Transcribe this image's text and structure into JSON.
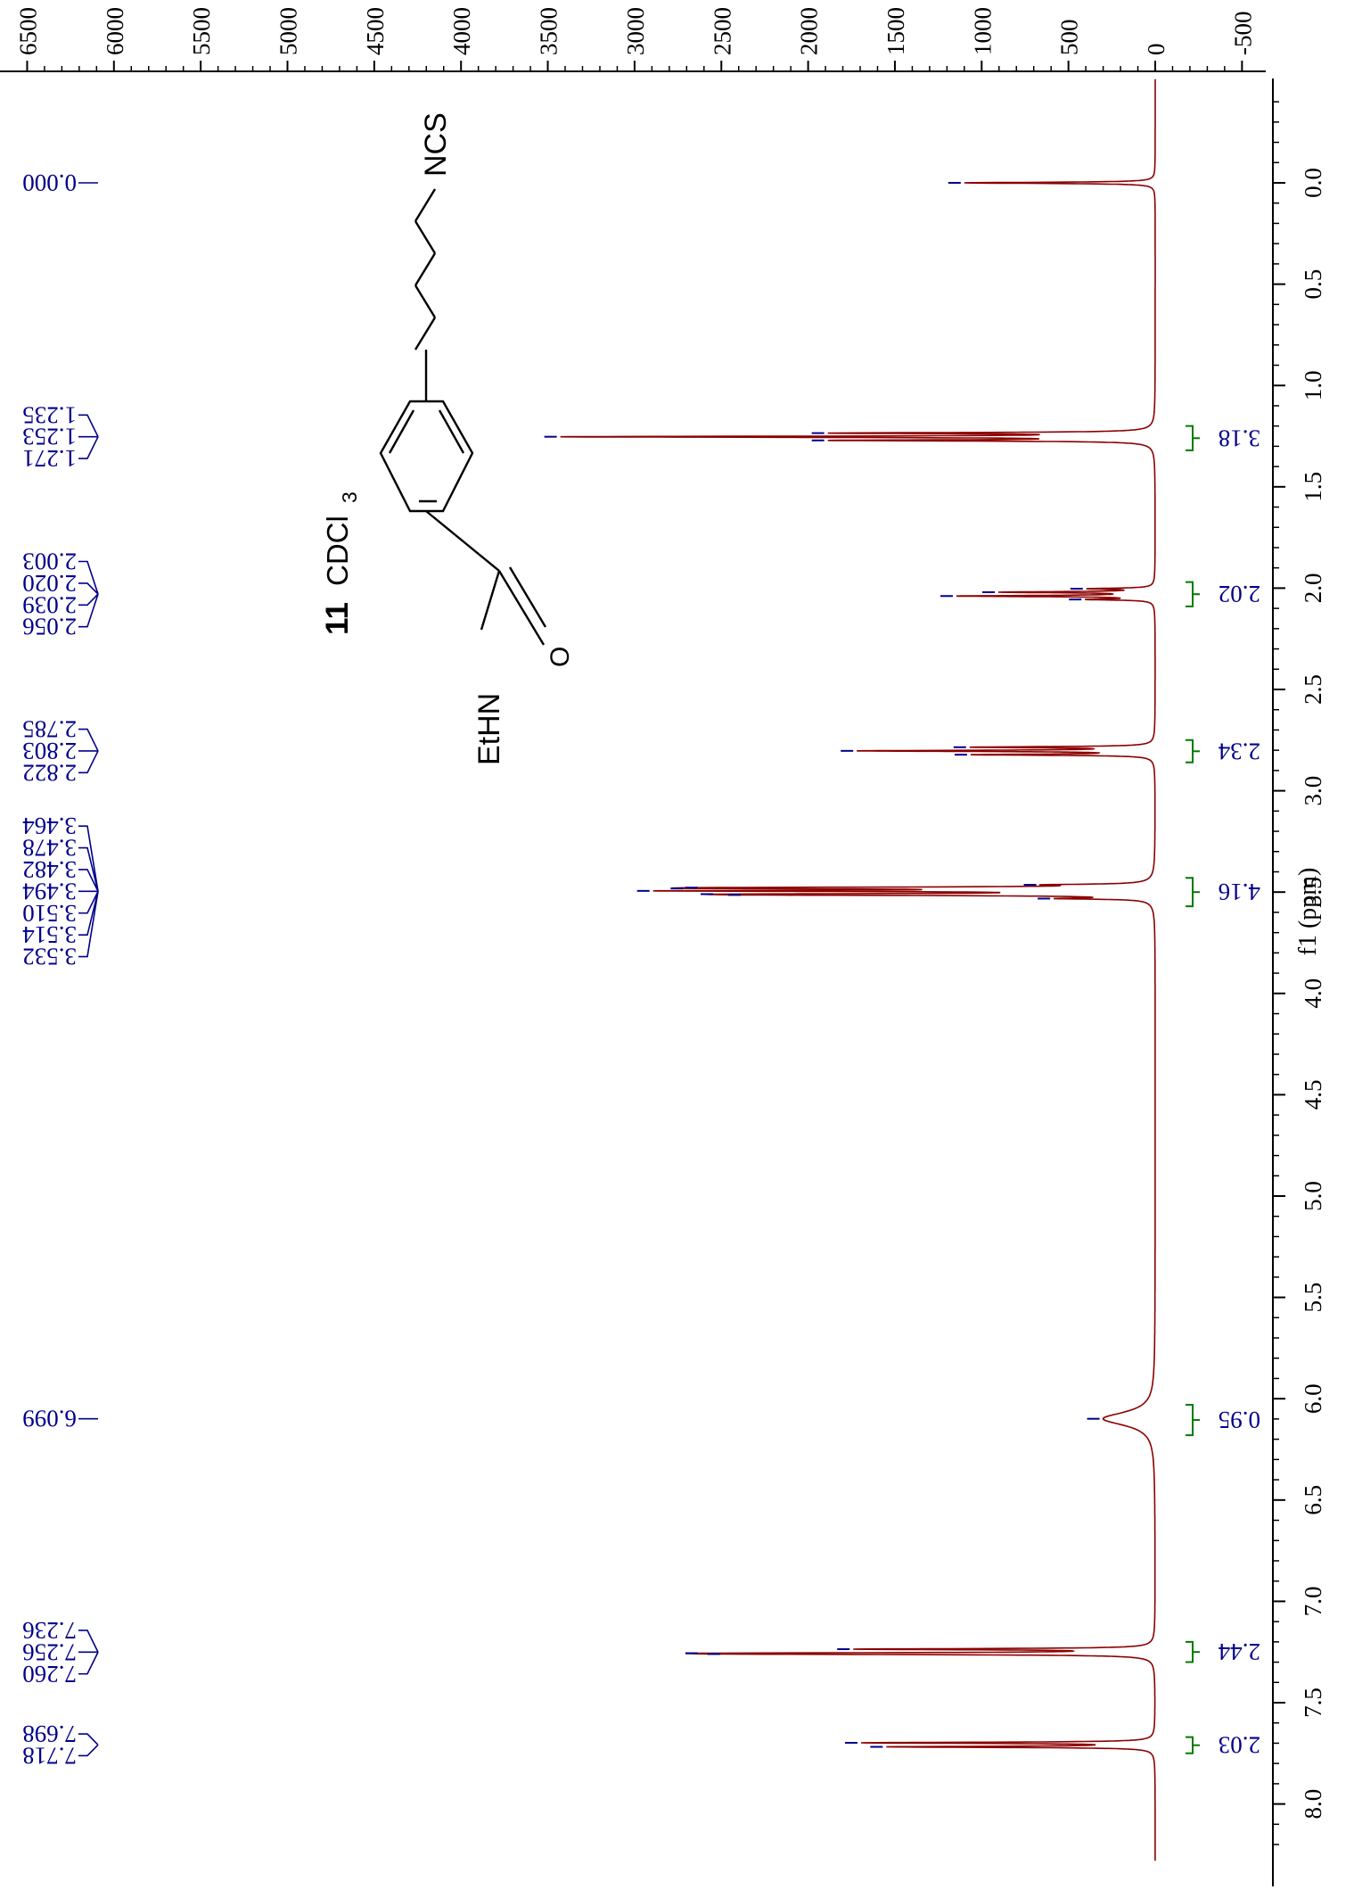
{
  "chart_data": {
    "type": "line",
    "title": "",
    "xlabel": "f1 (ppm)",
    "ylabel": "",
    "x_axis": {
      "range": [
        -0.5,
        8.2
      ],
      "ticks": [
        "0.0",
        "0.5",
        "1.0",
        "1.5",
        "2.0",
        "2.5",
        "3.0",
        "3.5",
        "4.0",
        "4.5",
        "5.0",
        "5.5",
        "6.0",
        "6.5",
        "7.0",
        "7.5",
        "8.0"
      ],
      "tick_values": [
        0.0,
        0.5,
        1.0,
        1.5,
        2.0,
        2.5,
        3.0,
        3.5,
        4.0,
        4.5,
        5.0,
        5.5,
        6.0,
        6.5,
        7.0,
        7.5,
        8.0
      ]
    },
    "y_axis": {
      "range": [
        -650,
        6550
      ],
      "ticks": [
        "6500",
        "6000",
        "5500",
        "5000",
        "4500",
        "4000",
        "3500",
        "3000",
        "2500",
        "2000",
        "1500",
        "1000",
        "500",
        "0",
        "-500"
      ],
      "tick_values": [
        6500,
        6000,
        5500,
        5000,
        4500,
        4000,
        3500,
        3000,
        2500,
        2000,
        1500,
        1000,
        500,
        0,
        -500
      ]
    },
    "peaks": [
      {
        "ppm": 0.0,
        "height": 1100
      },
      {
        "ppm": 1.235,
        "height": 1750
      },
      {
        "ppm": 1.253,
        "height": 3300
      },
      {
        "ppm": 1.271,
        "height": 1750
      },
      {
        "ppm": 2.003,
        "height": 350
      },
      {
        "ppm": 2.02,
        "height": 850
      },
      {
        "ppm": 2.039,
        "height": 1100
      },
      {
        "ppm": 2.056,
        "height": 350
      },
      {
        "ppm": 2.785,
        "height": 1000
      },
      {
        "ppm": 2.803,
        "height": 1650
      },
      {
        "ppm": 2.822,
        "height": 1000
      },
      {
        "ppm": 3.464,
        "height": 450
      },
      {
        "ppm": 3.478,
        "height": 1700
      },
      {
        "ppm": 3.482,
        "height": 1700
      },
      {
        "ppm": 3.494,
        "height": 2550
      },
      {
        "ppm": 3.51,
        "height": 1700
      },
      {
        "ppm": 3.514,
        "height": 1500
      },
      {
        "ppm": 3.532,
        "height": 450
      },
      {
        "ppm": 6.099,
        "height": 300
      },
      {
        "ppm": 7.236,
        "height": 1650
      },
      {
        "ppm": 7.256,
        "height": 1850
      },
      {
        "ppm": 7.26,
        "height": 1650
      },
      {
        "ppm": 7.698,
        "height": 1650
      },
      {
        "ppm": 7.718,
        "height": 1500
      }
    ],
    "peak_labels": [
      {
        "group": [
          "0.000"
        ]
      },
      {
        "group": [
          "1.235",
          "1.253",
          "1.271"
        ]
      },
      {
        "group": [
          "2.003",
          "2.020",
          "2.039",
          "2.056"
        ]
      },
      {
        "group": [
          "2.785",
          "2.803",
          "2.822"
        ]
      },
      {
        "group": [
          "3.464",
          "3.478",
          "3.482",
          "3.494",
          "3.510",
          "3.514",
          "3.532"
        ]
      },
      {
        "group": [
          "6.099"
        ]
      },
      {
        "group": [
          "7.236",
          "7.256",
          "7.260"
        ]
      },
      {
        "group": [
          "7.698",
          "7.718"
        ]
      }
    ],
    "integrals": [
      {
        "label": "3.18",
        "from": 1.2,
        "to": 1.32
      },
      {
        "label": "2.02",
        "from": 1.97,
        "to": 2.09
      },
      {
        "label": "2.34",
        "from": 2.75,
        "to": 2.86
      },
      {
        "label": "4.16",
        "from": 3.43,
        "to": 3.57
      },
      {
        "label": "0.95",
        "from": 6.03,
        "to": 6.18
      },
      {
        "label": "2.44",
        "from": 7.2,
        "to": 7.3
      },
      {
        "label": "2.03",
        "from": 7.67,
        "to": 7.75
      }
    ],
    "annotation": {
      "compound": "11",
      "solvent": "CDCl",
      "solvent_subscript": "3"
    },
    "structure_labels": {
      "ncs": "NCS",
      "amide": "EtHN",
      "oxygen": "O"
    },
    "colors": {
      "spectrum": "#8b0000",
      "peak_label": "#00008b",
      "integral_bracket": "#007a00",
      "integral_text": "#00008b",
      "axis": "#000000"
    },
    "grid": false
  }
}
